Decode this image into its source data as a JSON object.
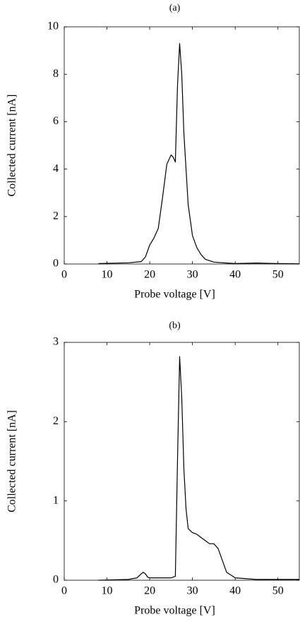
{
  "chart_data": [
    {
      "type": "line",
      "title": "(a)",
      "x_label": "Probe voltage [V]",
      "y_label": "Collected current [nA]",
      "x": [
        8,
        15,
        18,
        19,
        20,
        21,
        22,
        23,
        24,
        25,
        25.5,
        26,
        26.5,
        27,
        27.5,
        28,
        29,
        30,
        31,
        32,
        33,
        35,
        38,
        40,
        45,
        50,
        55
      ],
      "series": [
        {
          "color": "#000000",
          "values": [
            0.02,
            0.05,
            0.1,
            0.3,
            0.8,
            1.1,
            1.5,
            2.8,
            4.2,
            4.6,
            4.5,
            4.3,
            7.5,
            9.3,
            8.0,
            5.5,
            2.5,
            1.2,
            0.7,
            0.4,
            0.2,
            0.08,
            0.04,
            0.02,
            0.04,
            0.02,
            0.01
          ]
        }
      ],
      "xlim": [
        0,
        55
      ],
      "xticks": [
        0,
        10,
        20,
        30,
        40,
        50
      ],
      "ylim": [
        0,
        10
      ],
      "yticks": [
        0,
        2,
        4,
        6,
        8,
        10
      ]
    },
    {
      "type": "line",
      "title": "(b)",
      "x_label": "Probe voltage [V]",
      "y_label": "Collected current [nA]",
      "x": [
        8,
        15,
        17,
        18,
        18.5,
        19,
        19.5,
        20,
        22,
        25,
        26,
        26.5,
        27,
        27.5,
        28,
        28.5,
        29,
        30,
        31,
        32,
        33,
        34,
        35,
        36,
        37,
        38,
        40,
        45,
        50,
        55
      ],
      "series": [
        {
          "color": "#000000",
          "values": [
            0,
            0.01,
            0.03,
            0.08,
            0.1,
            0.08,
            0.04,
            0.03,
            0.03,
            0.03,
            0.05,
            1.5,
            2.82,
            2.3,
            1.4,
            0.9,
            0.65,
            0.6,
            0.58,
            0.54,
            0.5,
            0.46,
            0.46,
            0.4,
            0.25,
            0.1,
            0.03,
            0.01,
            0.01,
            0.01
          ]
        }
      ],
      "xlim": [
        0,
        55
      ],
      "xticks": [
        0,
        10,
        20,
        30,
        40,
        50
      ],
      "ylim": [
        0,
        3
      ],
      "yticks": [
        0,
        1,
        2,
        3
      ]
    }
  ]
}
